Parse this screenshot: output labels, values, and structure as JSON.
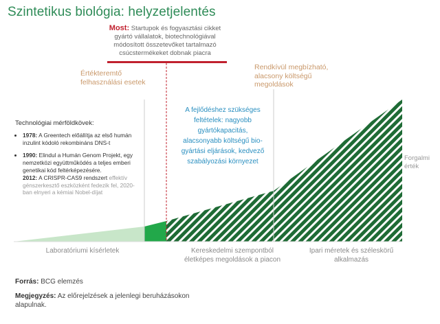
{
  "title": "Szintetikus biológia: helyzetjelentés",
  "now": {
    "label": "Most:",
    "text": "Startupok és fogyasztási cikket gyártó vállalatok, biotechnológiával módosított összetevőket tartalmazó csúcstermékeket dobnak piacra"
  },
  "value_applications": "Értékteremtő felhasználási esetek",
  "reliable_solutions": "Rendkívül megbízható, alacsony költségű megoldások",
  "milestones": {
    "heading": "Technológiai mérföldkövek:",
    "items": [
      {
        "year": "1978:",
        "text": "A Greentech előállítja az első humán inzulint kódoló rekombináns DNS-t"
      },
      {
        "year": "1990:",
        "text": "Elindul a Humán Genom Projekt, egy nemzetközi együttműködés a teljes emberi genetikai kód feltérképezésére."
      }
    ],
    "extra_year": "2012:",
    "extra_text": "A CRISPR-CAS9 rendszert",
    "extra_faded": "effektív génszerkesztő eszközként fedezik fel, 2020-ban elnyeri a kémiai Nobel-díjat"
  },
  "requirements": "A fejlődéshez szükséges feltételek: nagyobb gyártókapacitás, alacsonyabb költségű bio-gyártási eljárások, kedvező szabályozási környezet",
  "market_value": "Forgalmi érték",
  "stages": [
    "Laboratóriumi kísérletek",
    "Kereskedelmi szempontból életképes megoldások a piacon",
    "Ipari méretek és széleskörű alkalmazás"
  ],
  "source_label": "Forrás:",
  "source_text": "BCG elemzés",
  "note_label": "Megjegyzés:",
  "note_text": "Az előrejelzések a jelenlegi beruházásokon alapulnak.",
  "colors": {
    "title_green": "#2e8b57",
    "light_green": "#c8e6c9",
    "mid_green": "#22a84a",
    "dark_green": "#1e6b35",
    "red": "#c0202e",
    "orange_text": "#c9986a",
    "blue_text": "#2a8fc0"
  }
}
